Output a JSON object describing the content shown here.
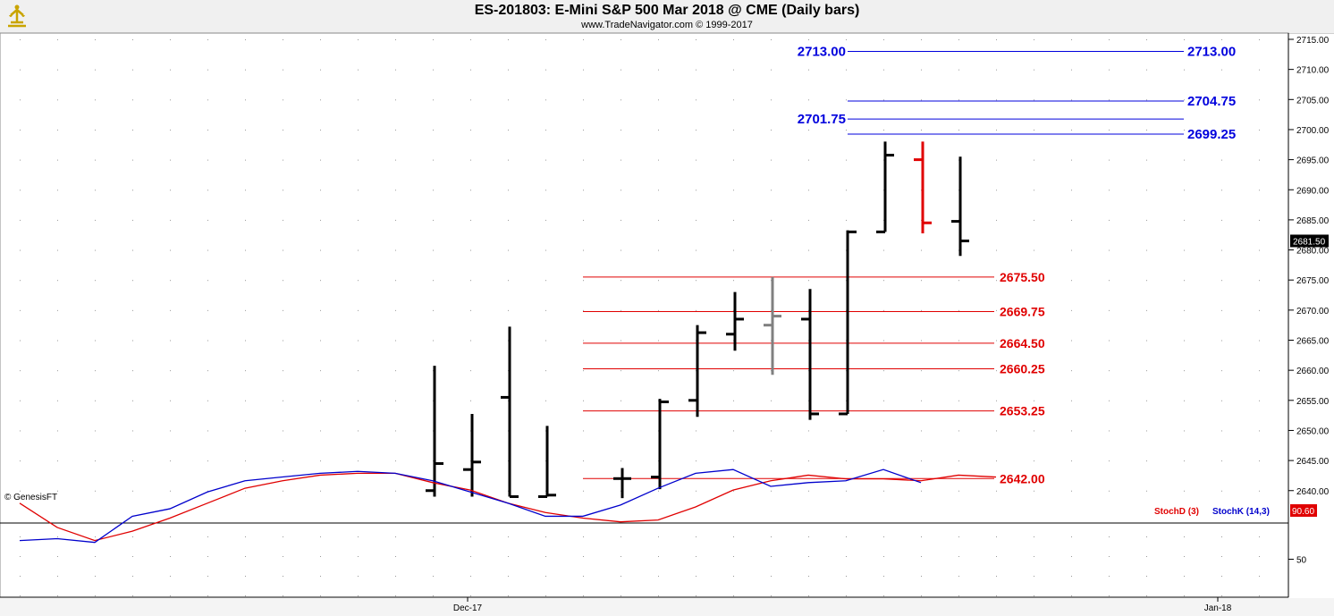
{
  "header": {
    "title": "ES-201803:  E-Mini S&P 500 Mar 2018 @ CME  (Daily bars)",
    "subtitle": "www.TradeNavigator.com © 1999-2017",
    "logo_icon": "trade-navigator-logo-icon"
  },
  "watermark": "© GenesisFT",
  "colors": {
    "bar_up": "#000000",
    "bar_down_highlight": "#e00000",
    "bar_gray": "#808080",
    "support_lines": "#e00000",
    "resistance_lines": "#0000dd",
    "stoch_d": "#e00000",
    "stoch_k": "#0000cc",
    "last_price_box": "#000000",
    "stoch_value_box": "#e00000"
  },
  "chart_data": [
    {
      "type": "ohlc",
      "title": "ES-201803:  E-Mini S&P 500 Mar 2018 @ CME  (Daily bars)",
      "y_ticks": [
        "2640.00",
        "2645.00",
        "2650.00",
        "2655.00",
        "2660.00",
        "2665.00",
        "2670.00",
        "2675.00",
        "2680.00",
        "2685.00",
        "2690.00",
        "2695.00",
        "2700.00",
        "2705.00",
        "2710.00",
        "2715.00"
      ],
      "ylim": [
        2636,
        2716
      ],
      "x_labels": [
        "Dec-17",
        "Jan-18"
      ],
      "last_price_label": "2681.50",
      "bars": [
        {
          "open": 2640.0,
          "high": 2660.75,
          "low": 2639.0,
          "close": 2644.5,
          "color": "black"
        },
        {
          "open": 2643.5,
          "high": 2652.75,
          "low": 2639.0,
          "close": 2644.75,
          "color": "black"
        },
        {
          "open": 2655.5,
          "high": 2667.25,
          "low": 2639.0,
          "close": 2639.0,
          "color": "black"
        },
        {
          "open": 2639.0,
          "high": 2650.75,
          "low": 2639.0,
          "close": 2639.25,
          "color": "black"
        },
        {
          "open": 2642.0,
          "high": 2643.75,
          "low": 2638.75,
          "close": 2642.0,
          "color": "black"
        },
        {
          "open": 2642.25,
          "high": 2655.25,
          "low": 2640.25,
          "close": 2654.75,
          "color": "black"
        },
        {
          "open": 2655.0,
          "high": 2667.5,
          "low": 2652.25,
          "close": 2666.25,
          "color": "black"
        },
        {
          "open": 2666.0,
          "high": 2673.0,
          "low": 2663.25,
          "close": 2668.5,
          "color": "black"
        },
        {
          "open": 2667.5,
          "high": 2675.5,
          "low": 2659.25,
          "close": 2669.0,
          "color": "gray"
        },
        {
          "open": 2668.5,
          "high": 2673.5,
          "low": 2651.75,
          "close": 2652.75,
          "color": "black"
        },
        {
          "open": 2652.75,
          "high": 2683.25,
          "low": 2652.75,
          "close": 2683.0,
          "color": "black"
        },
        {
          "open": 2683.0,
          "high": 2698.0,
          "low": 2683.0,
          "close": 2695.75,
          "color": "black"
        },
        {
          "open": 2695.0,
          "high": 2698.0,
          "low": 2682.75,
          "close": 2684.5,
          "color": "red"
        },
        {
          "open": 2684.75,
          "high": 2695.5,
          "low": 2679.0,
          "close": 2681.5,
          "color": "black"
        }
      ],
      "support_levels": [
        {
          "value": 2675.5,
          "label": "2675.50"
        },
        {
          "value": 2669.75,
          "label": "2669.75"
        },
        {
          "value": 2664.5,
          "label": "2664.50"
        },
        {
          "value": 2660.25,
          "label": "2660.25"
        },
        {
          "value": 2653.25,
          "label": "2653.25"
        },
        {
          "value": 2642.0,
          "label": "2642.00"
        }
      ],
      "resistance_levels": [
        {
          "value": 2713.0,
          "left_label": "2713.00",
          "right_label": "2713.00"
        },
        {
          "value": 2704.75,
          "left_label": "",
          "right_label": "2704.75"
        },
        {
          "value": 2701.75,
          "left_label": "2701.75",
          "right_label": ""
        },
        {
          "value": 2699.25,
          "left_label": "",
          "right_label": "2699.25"
        }
      ]
    },
    {
      "type": "line",
      "title": "",
      "y_tick": "50",
      "ylim": [
        0,
        100
      ],
      "value_label": "90.60",
      "series": [
        {
          "name": "StochD (3)",
          "color": "red",
          "values": [
            80,
            67,
            60,
            65,
            72,
            80,
            88,
            92,
            95,
            96,
            96,
            91,
            87,
            80,
            75,
            72,
            70,
            71,
            78,
            87,
            92,
            95,
            93,
            93,
            92,
            95,
            94
          ]
        },
        {
          "name": "StochK (14,3)",
          "color": "blue",
          "values": [
            60,
            61,
            59,
            73,
            77,
            86,
            92,
            94,
            96,
            97,
            96,
            92,
            86,
            80,
            73,
            73,
            79,
            88,
            96,
            98,
            89,
            91,
            92,
            98,
            91
          ]
        }
      ]
    }
  ]
}
